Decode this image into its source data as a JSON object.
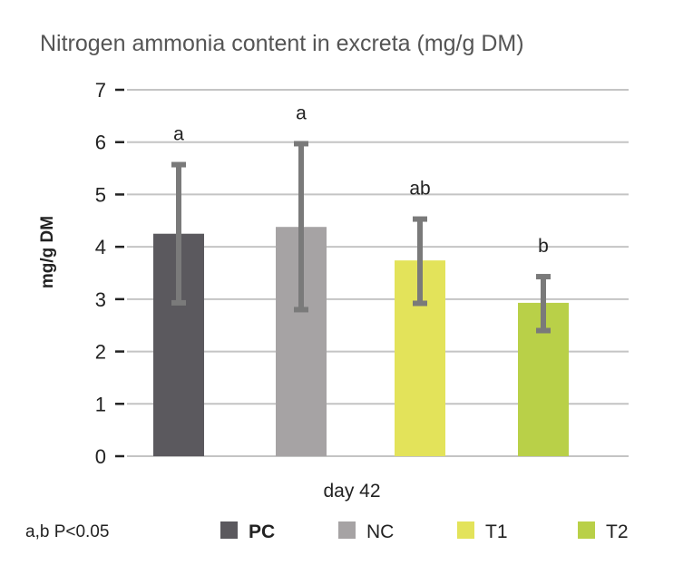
{
  "chart_data": {
    "type": "bar",
    "title": "Nitrogen ammonia content in excreta (mg/g DM)",
    "xlabel": "day 42",
    "ylabel": "mg/g DM",
    "ylim": [
      0,
      7
    ],
    "yticks": [
      0,
      1,
      2,
      3,
      4,
      5,
      6,
      7
    ],
    "grid": true,
    "legend_position": "bottom",
    "footnote": "a,b P<0.05",
    "series": [
      {
        "name": "PC",
        "value": 4.25,
        "error_low": 2.93,
        "error_high": 5.57,
        "significance": "a",
        "color": "#5b595e"
      },
      {
        "name": "NC",
        "value": 4.38,
        "error_low": 2.8,
        "error_high": 5.97,
        "significance": "a",
        "color": "#a6a3a4"
      },
      {
        "name": "T1",
        "value": 3.74,
        "error_low": 2.92,
        "error_high": 4.53,
        "significance": "ab",
        "color": "#e3e35a"
      },
      {
        "name": "T2",
        "value": 2.93,
        "error_low": 2.4,
        "error_high": 3.43,
        "significance": "b",
        "color": "#b9d048"
      }
    ]
  }
}
